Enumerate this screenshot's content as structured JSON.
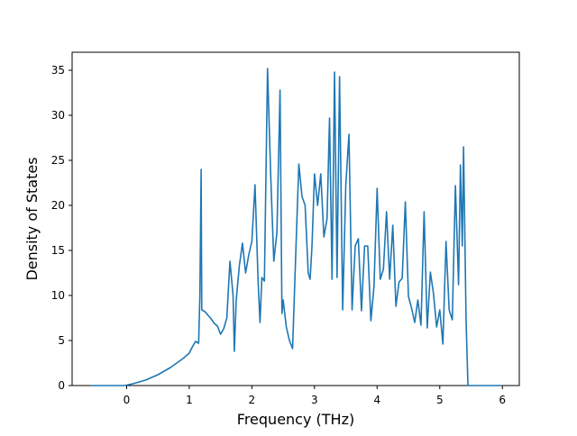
{
  "chart_data": {
    "type": "line",
    "title": "",
    "xlabel": "Frequency (THz)",
    "ylabel": "Density of States",
    "xlim": [
      -0.87,
      6.27
    ],
    "ylim": [
      0,
      37
    ],
    "grid": false,
    "line_color": "#1f77b4",
    "xticks": [
      0,
      1,
      2,
      3,
      4,
      5,
      6
    ],
    "yticks": [
      0,
      5,
      10,
      15,
      20,
      25,
      30,
      35
    ],
    "xtick_labels": [
      "0",
      "1",
      "2",
      "3",
      "4",
      "5",
      "6"
    ],
    "ytick_labels": [
      "0",
      "5",
      "10",
      "15",
      "20",
      "25",
      "30",
      "35"
    ],
    "series": [
      {
        "x": [
          -0.55,
          -0.45,
          -0.35,
          -0.25,
          -0.15,
          -0.05,
          0.0,
          0.1,
          0.2,
          0.3,
          0.4,
          0.5,
          0.6,
          0.7,
          0.8,
          0.9,
          1.0,
          1.05,
          1.1,
          1.15,
          1.17,
          1.19,
          1.2,
          1.25,
          1.3,
          1.35,
          1.4,
          1.45,
          1.5,
          1.55,
          1.6,
          1.65,
          1.7,
          1.72,
          1.75,
          1.8,
          1.85,
          1.9,
          1.95,
          2.0,
          2.05,
          2.1,
          2.13,
          2.16,
          2.2,
          2.25,
          2.3,
          2.35,
          2.4,
          2.45,
          2.48,
          2.5,
          2.55,
          2.6,
          2.65,
          2.7,
          2.75,
          2.8,
          2.85,
          2.9,
          2.93,
          2.96,
          3.0,
          3.05,
          3.1,
          3.15,
          3.2,
          3.24,
          3.28,
          3.32,
          3.36,
          3.4,
          3.45,
          3.5,
          3.55,
          3.6,
          3.65,
          3.7,
          3.75,
          3.8,
          3.85,
          3.9,
          3.95,
          4.0,
          4.05,
          4.1,
          4.15,
          4.2,
          4.25,
          4.3,
          4.35,
          4.4,
          4.45,
          4.5,
          4.55,
          4.6,
          4.65,
          4.7,
          4.75,
          4.8,
          4.85,
          4.9,
          4.95,
          5.0,
          5.05,
          5.1,
          5.15,
          5.2,
          5.25,
          5.3,
          5.33,
          5.36,
          5.38,
          5.4,
          5.42,
          5.45,
          5.6,
          5.8,
          5.98
        ],
        "y": [
          0.0,
          0.0,
          0.0,
          0.0,
          0.0,
          0.0,
          0.05,
          0.2,
          0.4,
          0.6,
          0.9,
          1.2,
          1.6,
          2.0,
          2.5,
          3.0,
          3.6,
          4.3,
          4.9,
          4.7,
          10.0,
          24.0,
          8.4,
          8.2,
          7.8,
          7.4,
          6.9,
          6.6,
          5.7,
          6.3,
          7.5,
          13.8,
          10.0,
          3.8,
          9.5,
          13.3,
          15.8,
          12.5,
          14.5,
          16.0,
          22.3,
          11.5,
          7.0,
          12.0,
          11.6,
          35.2,
          23.5,
          13.8,
          17.0,
          32.8,
          8.0,
          9.5,
          6.5,
          5.0,
          4.1,
          14.5,
          24.6,
          21.0,
          20.0,
          12.5,
          11.8,
          15.5,
          23.5,
          20.0,
          23.5,
          16.5,
          18.5,
          29.7,
          11.8,
          34.8,
          12.0,
          34.3,
          8.4,
          22.3,
          27.9,
          8.4,
          15.5,
          16.3,
          8.3,
          15.5,
          15.5,
          7.2,
          11.0,
          21.9,
          11.8,
          12.9,
          19.3,
          11.8,
          17.8,
          8.8,
          11.5,
          11.9,
          20.4,
          9.9,
          8.6,
          7.0,
          9.5,
          6.7,
          19.3,
          6.4,
          12.6,
          10.2,
          6.5,
          8.4,
          4.6,
          16.0,
          8.4,
          7.3,
          22.2,
          11.2,
          24.5,
          15.5,
          26.5,
          17.0,
          7.3,
          0.0,
          0.0,
          0.0,
          0.0
        ]
      }
    ]
  }
}
